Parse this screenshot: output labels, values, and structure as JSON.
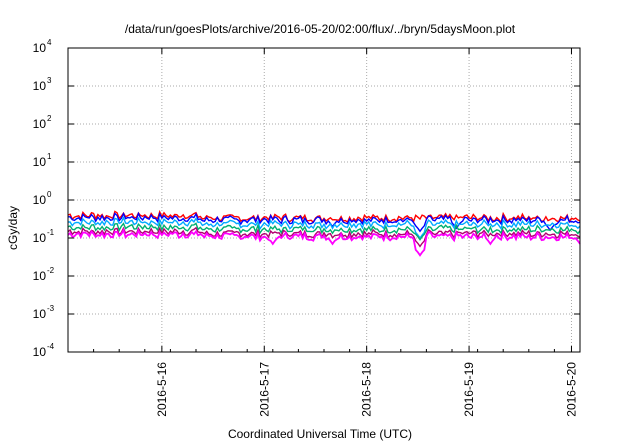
{
  "chart_data": {
    "type": "line",
    "title": "/data/run/goesPlots/archive/2016-05-20/02:00/flux/../bryn/5daysMoon.plot",
    "xlabel": "Coordinated Universal Time (UTC)",
    "ylabel": "cGy/day",
    "y_scale": "log",
    "ylim": [
      0.0001,
      10000
    ],
    "xlim": [
      "2016-05-15 02:00",
      "2016-05-20 02:00"
    ],
    "grid": true,
    "y_ticks": [
      "10^-4",
      "10^-3",
      "10^-2",
      "10^-1",
      "10^0",
      "10^1",
      "10^2",
      "10^3",
      "10^4"
    ],
    "x_ticks": [
      "2016-5-16",
      "2016-5-17",
      "2016-5-18",
      "2016-5-19",
      "2016-5-20"
    ],
    "series": [
      {
        "color": "#ff0000",
        "base": 0.34,
        "dips": []
      },
      {
        "color": "#0000ff",
        "base": 0.3,
        "dips": [
          [
            "2016-05-17 16:00",
            0.2
          ],
          [
            "2016-05-18 12:30",
            0.15
          ],
          [
            "2016-05-18 21:00",
            0.18
          ],
          [
            "2016-05-19 19:00",
            0.16
          ]
        ]
      },
      {
        "color": "#00aaff",
        "base": 0.23,
        "dips": [
          [
            "2016-05-18 12:30",
            0.1
          ]
        ]
      },
      {
        "color": "#00b070",
        "base": 0.17,
        "dips": [
          [
            "2016-05-18 12:30",
            0.09
          ]
        ]
      },
      {
        "color": "#b00070",
        "base": 0.13,
        "dips": [
          [
            "2016-05-18 12:30",
            0.06
          ]
        ]
      },
      {
        "color": "#ff00ff",
        "base": 0.11,
        "dips": [
          [
            "2016-05-17 02:00",
            0.07
          ],
          [
            "2016-05-17 16:00",
            0.07
          ],
          [
            "2016-05-18 12:30",
            0.035
          ],
          [
            "2016-05-19 05:00",
            0.07
          ],
          [
            "2016-05-20 02:00",
            0.07
          ]
        ]
      }
    ]
  }
}
